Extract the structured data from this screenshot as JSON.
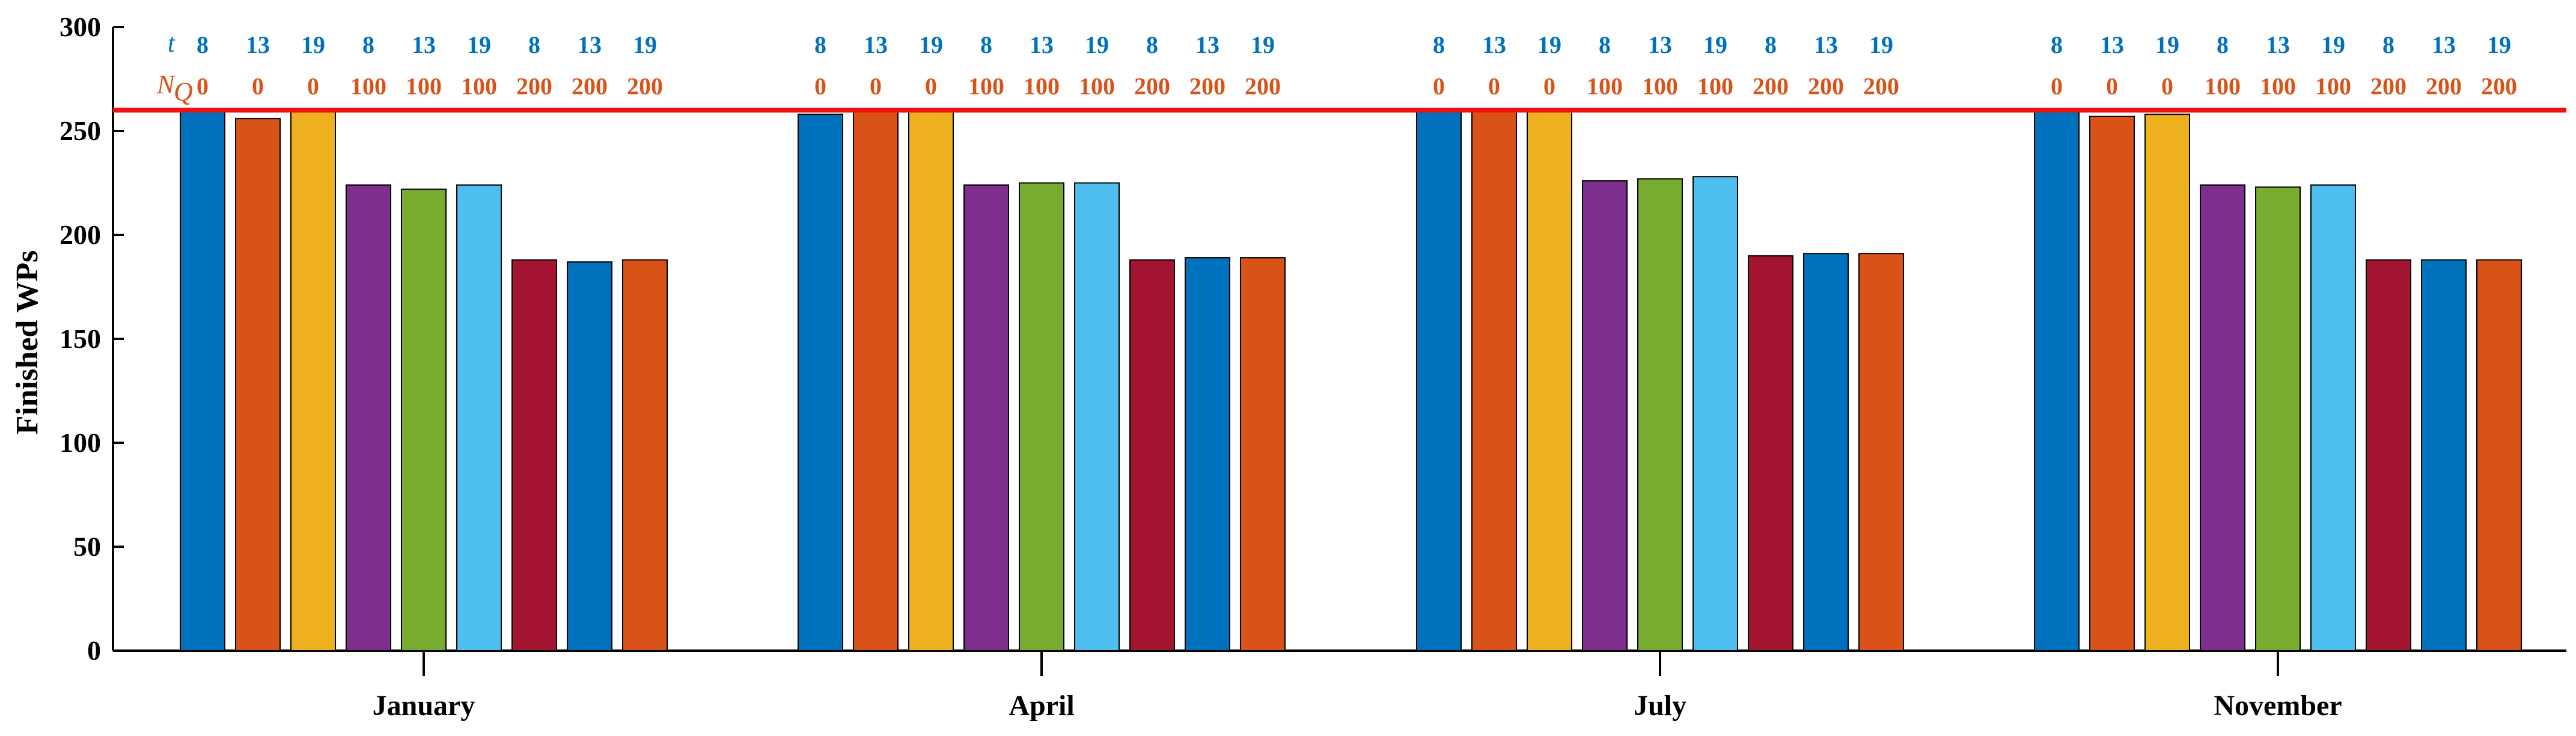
{
  "chart_data": {
    "type": "bar",
    "ylabel": "Finished WPs",
    "xlabel": "",
    "ylim": [
      0,
      300
    ],
    "yticks": [
      0,
      50,
      100,
      150,
      200,
      250,
      300
    ],
    "categories": [
      "January",
      "April",
      "July",
      "November"
    ],
    "reference_line": {
      "value": 260,
      "color": "#ee1111"
    },
    "annotation_rows": {
      "t_symbol": "t",
      "nq_symbol": "N",
      "nq_subscript": "Q",
      "t_color": "#0072bd",
      "nq_color": "#d95319"
    },
    "series": [
      {
        "t": "8",
        "nq": "0",
        "color": "#0072bd",
        "values": [
          260,
          258,
          260,
          260
        ]
      },
      {
        "t": "13",
        "nq": "0",
        "color": "#d95319",
        "values": [
          256,
          260,
          260,
          257
        ]
      },
      {
        "t": "19",
        "nq": "0",
        "color": "#edb120",
        "values": [
          260,
          260,
          260,
          258
        ]
      },
      {
        "t": "8",
        "nq": "100",
        "color": "#7e2f8e",
        "values": [
          224,
          224,
          226,
          224
        ]
      },
      {
        "t": "13",
        "nq": "100",
        "color": "#77ac30",
        "values": [
          222,
          225,
          227,
          223
        ]
      },
      {
        "t": "19",
        "nq": "100",
        "color": "#4dbeee",
        "values": [
          224,
          225,
          228,
          224
        ]
      },
      {
        "t": "8",
        "nq": "200",
        "color": "#a2142f",
        "values": [
          188,
          188,
          190,
          188
        ]
      },
      {
        "t": "13",
        "nq": "200",
        "color": "#0072bd",
        "values": [
          187,
          189,
          191,
          188
        ]
      },
      {
        "t": "19",
        "nq": "200",
        "color": "#d95319",
        "values": [
          188,
          189,
          191,
          188
        ]
      }
    ]
  }
}
